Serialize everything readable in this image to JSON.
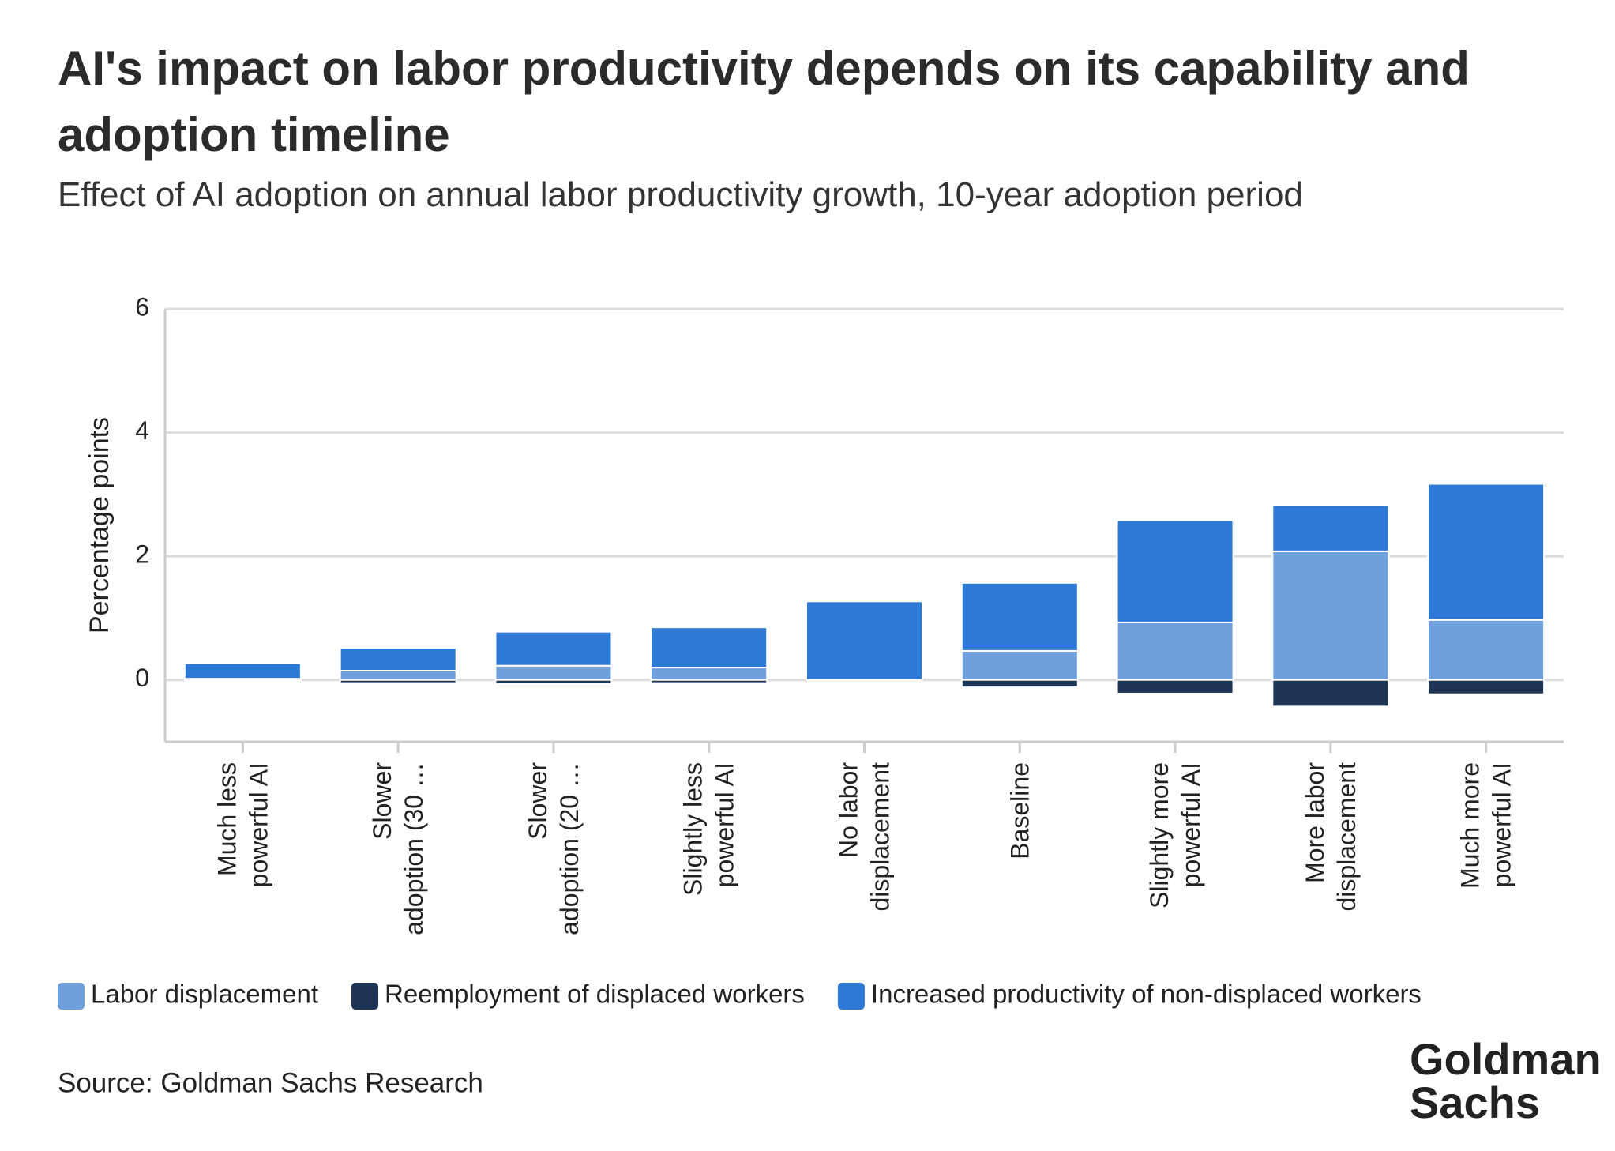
{
  "chart_data": {
    "type": "stacked_bar",
    "title": "AI's impact on labor productivity depends on its capability and adoption timeline",
    "subtitle": "Effect of AI adoption on annual labor productivity growth, 10-year adoption period",
    "y_label": "Percentage points",
    "categories": [
      "Much less powerful AI",
      "Slower adoption (30 …",
      "Slower adoption (20 …",
      "Slightly less powerful AI",
      "No labor displacement",
      "Baseline",
      "Slightly more powerful AI",
      "More labor displacement",
      "Much more powerful AI"
    ],
    "series": [
      {
        "name": "Labor displacement",
        "color": "#6fa0dc",
        "values": [
          0.02,
          0.15,
          0.23,
          0.2,
          0,
          0.47,
          0.93,
          2.08,
          0.97
        ]
      },
      {
        "name": "Reemployment of displaced workers",
        "color": "#1f3556",
        "values": [
          -0.01,
          -0.05,
          -0.06,
          -0.05,
          0,
          -0.12,
          -0.22,
          -0.43,
          -0.23
        ]
      },
      {
        "name": "Increased productivity of non-displaced workers",
        "color": "#2e78d6",
        "values": [
          0.25,
          0.37,
          0.55,
          0.65,
          1.27,
          1.1,
          1.65,
          0.75,
          2.2
        ]
      }
    ],
    "ylim": [
      -1,
      6
    ],
    "yticks": [
      0,
      2,
      4,
      6
    ],
    "grid": true,
    "source": "Source: Goldman Sachs Research",
    "logo": "Goldman Sachs"
  }
}
